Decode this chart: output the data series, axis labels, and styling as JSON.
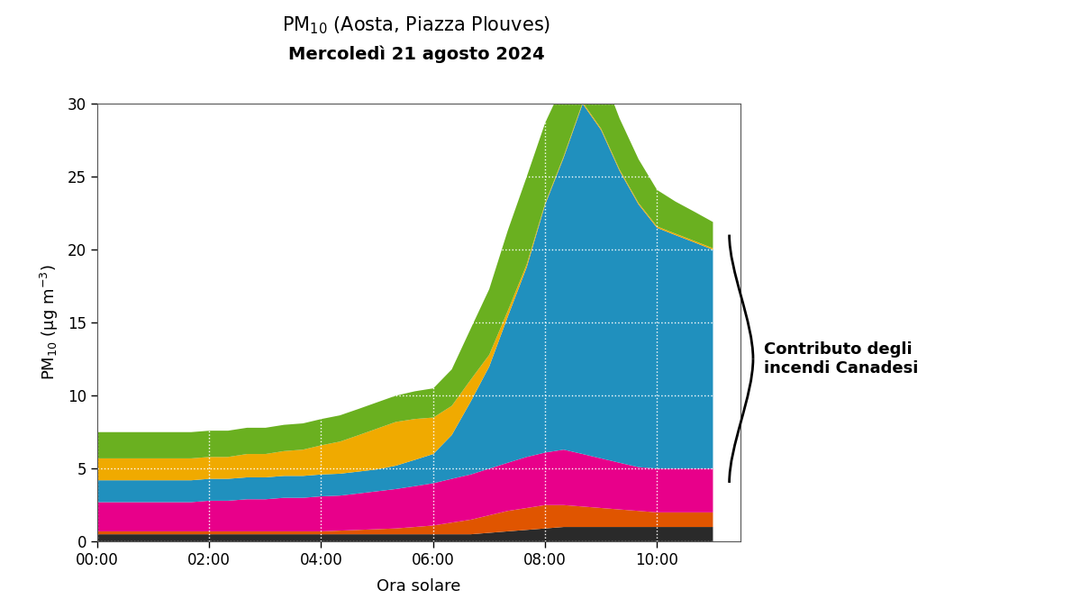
{
  "title_line1": "PM$_{10}$ (Aosta, Piazza Plouves)",
  "title_line2": "Mercoledì 21 agosto 2024",
  "xlabel": "Ora solare",
  "ylabel": "PM$_{10}$ (μg m$^{-3}$)",
  "annotation_text": "Contributo degli\nincendi Canadesi",
  "ylim": [
    0,
    30
  ],
  "yticks": [
    0,
    5,
    10,
    15,
    20,
    25,
    30
  ],
  "xtick_positions": [
    0,
    2,
    4,
    6,
    8,
    10
  ],
  "xtick_labels": [
    "00:00",
    "02:00",
    "04:00",
    "06:00",
    "08:00",
    "10:00"
  ],
  "xlim": [
    0,
    11.5
  ],
  "background_color": "#ffffff",
  "plot_bg_color": "#ffffff",
  "time_hours": [
    0,
    0.33,
    0.67,
    1,
    1.33,
    1.67,
    2,
    2.33,
    2.67,
    3,
    3.33,
    3.67,
    4,
    4.33,
    4.67,
    5,
    5.33,
    5.67,
    6,
    6.33,
    6.67,
    7,
    7.33,
    7.67,
    8,
    8.33,
    8.67,
    9,
    9.33,
    9.67,
    10,
    10.33,
    10.67,
    11
  ],
  "layer_black": [
    0.5,
    0.5,
    0.5,
    0.5,
    0.5,
    0.5,
    0.5,
    0.5,
    0.5,
    0.5,
    0.5,
    0.5,
    0.5,
    0.5,
    0.5,
    0.5,
    0.5,
    0.5,
    0.5,
    0.5,
    0.5,
    0.6,
    0.7,
    0.8,
    0.9,
    1.0,
    1.0,
    1.0,
    1.0,
    1.0,
    1.0,
    1.0,
    1.0,
    1.0
  ],
  "layer_orange": [
    0.2,
    0.2,
    0.2,
    0.2,
    0.2,
    0.2,
    0.2,
    0.2,
    0.2,
    0.2,
    0.2,
    0.2,
    0.2,
    0.25,
    0.3,
    0.35,
    0.4,
    0.5,
    0.6,
    0.8,
    1.0,
    1.2,
    1.4,
    1.5,
    1.6,
    1.5,
    1.4,
    1.3,
    1.2,
    1.1,
    1.0,
    1.0,
    1.0,
    1.0
  ],
  "layer_magenta": [
    2.0,
    2.0,
    2.0,
    2.0,
    2.0,
    2.0,
    2.1,
    2.1,
    2.2,
    2.2,
    2.3,
    2.3,
    2.4,
    2.4,
    2.5,
    2.6,
    2.7,
    2.8,
    2.9,
    3.0,
    3.1,
    3.2,
    3.3,
    3.5,
    3.6,
    3.8,
    3.6,
    3.4,
    3.2,
    3.0,
    3.0,
    3.0,
    3.0,
    3.0
  ],
  "layer_blue": [
    1.5,
    1.5,
    1.5,
    1.5,
    1.5,
    1.5,
    1.5,
    1.5,
    1.5,
    1.5,
    1.5,
    1.5,
    1.5,
    1.5,
    1.5,
    1.5,
    1.6,
    1.8,
    2.0,
    3.0,
    5.0,
    7.0,
    10.0,
    13.0,
    17.0,
    20.0,
    24.0,
    22.5,
    20.0,
    18.0,
    16.5,
    16.0,
    15.5,
    15.0
  ],
  "layer_yellow": [
    1.5,
    1.5,
    1.5,
    1.5,
    1.5,
    1.5,
    1.5,
    1.5,
    1.6,
    1.6,
    1.7,
    1.8,
    2.0,
    2.2,
    2.5,
    2.8,
    3.0,
    2.8,
    2.5,
    2.0,
    1.5,
    0.8,
    0.4,
    0.2,
    0.1,
    0.1,
    0.1,
    0.1,
    0.1,
    0.1,
    0.1,
    0.1,
    0.1,
    0.1
  ],
  "layer_green": [
    1.8,
    1.8,
    1.8,
    1.8,
    1.8,
    1.8,
    1.8,
    1.8,
    1.8,
    1.8,
    1.8,
    1.8,
    1.8,
    1.8,
    1.8,
    1.8,
    1.8,
    1.9,
    2.0,
    2.5,
    3.5,
    4.5,
    5.5,
    6.0,
    5.5,
    5.0,
    4.5,
    4.0,
    3.5,
    3.0,
    2.5,
    2.2,
    2.0,
    1.8
  ],
  "color_black": "#2a2a2a",
  "color_orange": "#e05500",
  "color_magenta": "#e8008a",
  "color_blue": "#2090be",
  "color_yellow": "#f0aa00",
  "color_green": "#6ab020"
}
